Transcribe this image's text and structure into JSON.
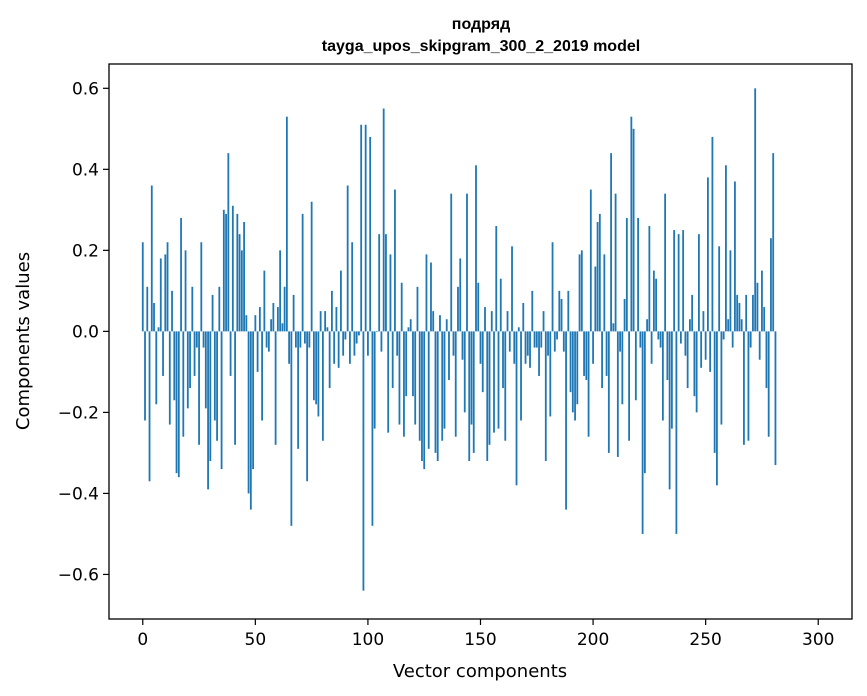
{
  "chart_data": {
    "type": "bar",
    "title": "подряд",
    "subtitle": "tayga_upos_skipgram_300_2_2019 model",
    "xlabel": "Vector components",
    "ylabel": "Components values",
    "xlim": [
      -15,
      315
    ],
    "ylim": [
      -0.71,
      0.66
    ],
    "xticks": [
      0,
      50,
      100,
      150,
      200,
      250,
      300
    ],
    "xtick_labels": [
      "0",
      "50",
      "100",
      "150",
      "200",
      "250",
      "300"
    ],
    "yticks": [
      -0.6,
      -0.4,
      -0.2,
      0.0,
      0.2,
      0.4,
      0.6
    ],
    "ytick_labels": [
      "−0.6",
      "−0.4",
      "−0.2",
      "0.0",
      "0.2",
      "0.4",
      "0.6"
    ],
    "grid": false,
    "bar_color": "#1f77b4",
    "x_start": 0,
    "values": [
      0.22,
      -0.22,
      0.11,
      -0.37,
      0.36,
      0.07,
      -0.18,
      0.01,
      0.18,
      -0.11,
      0.19,
      0.22,
      -0.23,
      0.1,
      -0.17,
      -0.35,
      -0.36,
      0.28,
      -0.26,
      0.2,
      -0.19,
      -0.14,
      0.11,
      -0.11,
      -0.04,
      -0.28,
      0.22,
      -0.04,
      -0.19,
      -0.39,
      -0.32,
      0.09,
      -0.22,
      -0.27,
      0.11,
      -0.34,
      0.3,
      0.29,
      0.44,
      -0.11,
      0.31,
      -0.28,
      0.29,
      0.24,
      0.2,
      0.27,
      0.04,
      -0.4,
      -0.44,
      -0.34,
      0.04,
      -0.1,
      0.06,
      -0.22,
      0.15,
      -0.04,
      -0.05,
      0.03,
      0.07,
      -0.28,
      0.06,
      0.2,
      0.02,
      0.11,
      0.53,
      -0.08,
      -0.48,
      0.09,
      -0.04,
      -0.29,
      -0.04,
      0.29,
      -0.03,
      -0.37,
      -0.04,
      0.32,
      -0.17,
      -0.18,
      -0.21,
      0.05,
      -0.27,
      0.05,
      0.01,
      -0.14,
      0.1,
      -0.08,
      0.06,
      -0.09,
      0.15,
      -0.06,
      -0.02,
      0.36,
      -0.08,
      0.22,
      -0.06,
      -0.03,
      -0.01,
      0.51,
      -0.64,
      0.51,
      -0.06,
      0.48,
      -0.48,
      -0.24,
      0.0,
      0.24,
      -0.05,
      0.55,
      0.24,
      -0.25,
      0.19,
      -0.14,
      0.35,
      -0.06,
      -0.23,
      0.12,
      -0.26,
      -0.16,
      0.01,
      0.03,
      -0.16,
      -0.23,
      0.11,
      -0.27,
      -0.32,
      -0.34,
      0.19,
      -0.29,
      0.17,
      0.05,
      -0.3,
      -0.32,
      0.04,
      -0.27,
      -0.24,
      0.03,
      -0.12,
      0.34,
      -0.06,
      -0.26,
      0.11,
      0.18,
      -0.07,
      -0.2,
      0.34,
      -0.32,
      -0.23,
      -0.3,
      0.41,
      0.12,
      -0.08,
      -0.15,
      0.06,
      -0.32,
      -0.28,
      0.05,
      -0.25,
      0.26,
      -0.24,
      0.13,
      -0.14,
      -0.27,
      0.05,
      -0.05,
      0.21,
      -0.08,
      -0.38,
      0.01,
      -0.22,
      0.07,
      -0.08,
      -0.06,
      -0.09,
      0.1,
      -0.04,
      -0.04,
      -0.11,
      -0.04,
      0.05,
      -0.32,
      -0.06,
      -0.21,
      0.22,
      -0.05,
      -0.02,
      0.1,
      0.08,
      -0.05,
      -0.44,
      0.1,
      -0.15,
      -0.2,
      -0.22,
      -0.18,
      0.19,
      0.2,
      -0.11,
      -0.12,
      -0.26,
      0.35,
      -0.08,
      0.16,
      0.27,
      0.29,
      -0.14,
      0.19,
      -0.11,
      -0.3,
      0.44,
      0.02,
      0.34,
      -0.31,
      -0.05,
      -0.18,
      0.08,
      0.28,
      -0.27,
      0.53,
      0.5,
      -0.17,
      0.28,
      -0.04,
      -0.5,
      -0.35,
      0.03,
      0.26,
      -0.08,
      0.15,
      0.13,
      -0.02,
      -0.04,
      -0.22,
      0.34,
      -0.12,
      -0.39,
      -0.24,
      0.25,
      -0.5,
      0.24,
      -0.03,
      0.25,
      -0.06,
      -0.14,
      0.03,
      0.09,
      -0.16,
      -0.2,
      0.24,
      -0.09,
      0.05,
      -0.07,
      0.38,
      -0.1,
      0.48,
      -0.3,
      -0.38,
      0.21,
      -0.23,
      -0.02,
      0.41,
      0.03,
      0.2,
      -0.04,
      0.37,
      0.09,
      0.07,
      0.03,
      -0.28,
      0.09,
      -0.27,
      -0.04,
      0.09,
      0.6,
      0.12,
      -0.07,
      0.15,
      0.06,
      -0.14,
      -0.26,
      0.23,
      0.44,
      -0.33
    ]
  }
}
